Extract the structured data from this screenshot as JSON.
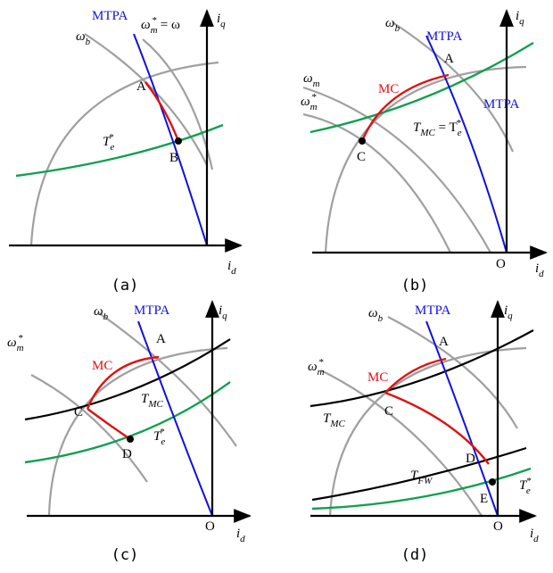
{
  "panels": [
    {
      "caption": "(a)",
      "labels": [
        {
          "parts": [
            {
              "text": "ω"
            },
            {
              "sub": "b"
            }
          ]
        },
        {
          "parts": [
            {
              "text": "MTPA"
            }
          ]
        },
        {
          "parts": [
            {
              "text": "ω"
            },
            {
              "sub": "m"
            },
            {
              "sup": "*"
            },
            {
              "text": " = ω"
            }
          ]
        },
        {
          "parts": [
            {
              "text": "i"
            },
            {
              "sub": "q"
            }
          ]
        },
        {
          "parts": [
            {
              "text": "A"
            }
          ]
        },
        {
          "parts": [
            {
              "text": "T"
            },
            {
              "sub": "e"
            },
            {
              "sup": "*"
            }
          ]
        },
        {
          "parts": [
            {
              "text": "B"
            }
          ]
        },
        {
          "parts": [
            {
              "text": "i"
            },
            {
              "sub": "d"
            }
          ]
        }
      ]
    },
    {
      "caption": "(b)",
      "labels": [
        {
          "parts": [
            {
              "text": "ω"
            },
            {
              "sub": "b"
            }
          ]
        },
        {
          "parts": [
            {
              "text": "MTPA"
            }
          ]
        },
        {
          "parts": [
            {
              "text": "i"
            },
            {
              "sub": "q"
            }
          ]
        },
        {
          "parts": [
            {
              "text": "A"
            }
          ]
        },
        {
          "parts": [
            {
              "text": "ω"
            },
            {
              "sub": "m"
            }
          ]
        },
        {
          "parts": [
            {
              "text": "ω"
            },
            {
              "sub": "m"
            },
            {
              "sup": "*"
            }
          ]
        },
        {
          "parts": [
            {
              "text": "MC"
            }
          ]
        },
        {
          "parts": [
            {
              "text": "MTPA"
            }
          ]
        },
        {
          "parts": [
            {
              "text": "T"
            },
            {
              "sub": "MC"
            },
            {
              "text": " = T"
            },
            {
              "sub": "e"
            },
            {
              "sup": "*"
            }
          ]
        },
        {
          "parts": [
            {
              "text": "C"
            }
          ]
        },
        {
          "parts": [
            {
              "text": "O"
            }
          ]
        },
        {
          "parts": [
            {
              "text": "i"
            },
            {
              "sub": "d"
            }
          ]
        }
      ]
    },
    {
      "caption": "(c)",
      "labels": [
        {
          "parts": [
            {
              "text": "ω"
            },
            {
              "sub": "b"
            }
          ]
        },
        {
          "parts": [
            {
              "text": "MTPA"
            }
          ]
        },
        {
          "parts": [
            {
              "text": "i"
            },
            {
              "sub": "q"
            }
          ]
        },
        {
          "parts": [
            {
              "text": "A"
            }
          ]
        },
        {
          "parts": [
            {
              "text": "ω"
            },
            {
              "sub": "m"
            },
            {
              "sup": "*"
            }
          ]
        },
        {
          "parts": [
            {
              "text": "MC"
            }
          ]
        },
        {
          "parts": [
            {
              "text": "T"
            },
            {
              "sub": "MC"
            }
          ]
        },
        {
          "parts": [
            {
              "text": "C"
            }
          ]
        },
        {
          "parts": [
            {
              "text": "T"
            },
            {
              "sub": "e"
            },
            {
              "sup": "*"
            }
          ]
        },
        {
          "parts": [
            {
              "text": "D"
            }
          ]
        },
        {
          "parts": [
            {
              "text": "O"
            }
          ]
        },
        {
          "parts": [
            {
              "text": "i"
            },
            {
              "sub": "d"
            }
          ]
        }
      ]
    },
    {
      "caption": "(d)",
      "labels": [
        {
          "parts": [
            {
              "text": "ω"
            },
            {
              "sub": "b"
            }
          ]
        },
        {
          "parts": [
            {
              "text": "MTPA"
            }
          ]
        },
        {
          "parts": [
            {
              "text": "i"
            },
            {
              "sub": "q"
            }
          ]
        },
        {
          "parts": [
            {
              "text": "A"
            }
          ]
        },
        {
          "parts": [
            {
              "text": "ω"
            },
            {
              "sub": "m"
            },
            {
              "sup": "*"
            }
          ]
        },
        {
          "parts": [
            {
              "text": "MC"
            }
          ]
        },
        {
          "parts": [
            {
              "text": "C"
            }
          ]
        },
        {
          "parts": [
            {
              "text": "T"
            },
            {
              "sub": "MC"
            }
          ]
        },
        {
          "parts": [
            {
              "text": "D"
            }
          ]
        },
        {
          "parts": [
            {
              "text": "T"
            },
            {
              "sub": "FW"
            }
          ]
        },
        {
          "parts": [
            {
              "text": "T"
            },
            {
              "sup": "*"
            },
            {
              "sub": "e"
            }
          ]
        },
        {
          "parts": [
            {
              "text": "E"
            }
          ]
        },
        {
          "parts": [
            {
              "text": "O"
            }
          ]
        },
        {
          "parts": [
            {
              "text": "i"
            },
            {
              "sub": "d"
            }
          ]
        }
      ]
    }
  ]
}
